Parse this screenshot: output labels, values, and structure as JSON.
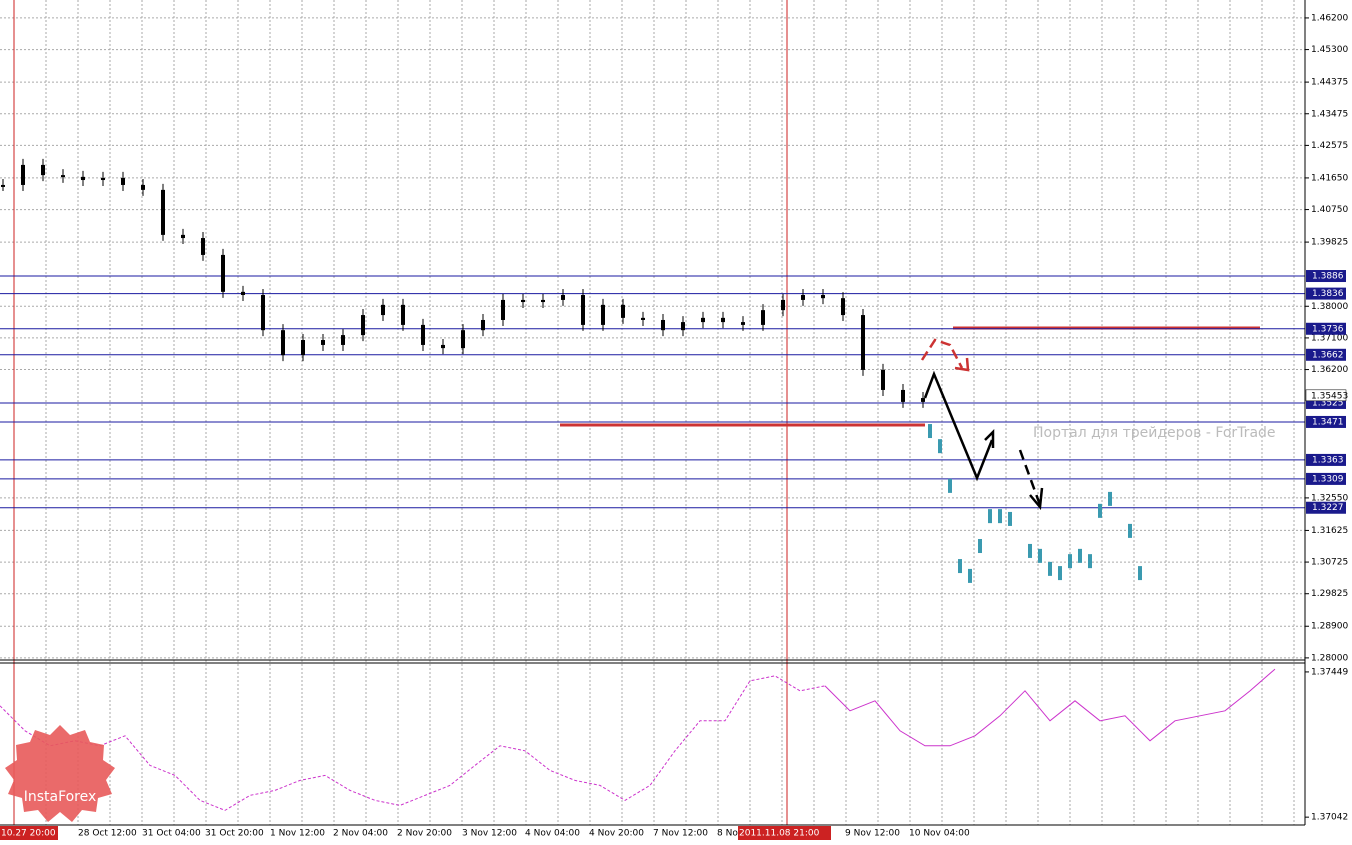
{
  "chart_data": {
    "type": "price",
    "ylim": [
      1.2794,
      1.4671
    ],
    "yticks": [
      {
        "value": 1.462,
        "label": "1.46200"
      },
      {
        "value": 1.453,
        "label": "1.45300"
      },
      {
        "value": 1.44375,
        "label": "1.44375"
      },
      {
        "value": 1.43475,
        "label": "1.43475"
      },
      {
        "value": 1.42575,
        "label": "1.42575"
      },
      {
        "value": 1.4165,
        "label": "1.41650"
      },
      {
        "value": 1.4075,
        "label": "1.40750"
      },
      {
        "value": 1.39825,
        "label": "1.39825"
      },
      {
        "value": 1.38,
        "label": "1.38000"
      },
      {
        "value": 1.371,
        "label": "1.37100"
      },
      {
        "value": 1.362,
        "label": "1.36200"
      },
      {
        "value": 1.3255,
        "label": "1.32550"
      },
      {
        "value": 1.31625,
        "label": "1.31625"
      },
      {
        "value": 1.30725,
        "label": "1.30725"
      },
      {
        "value": 1.29825,
        "label": "1.29825"
      },
      {
        "value": 1.289,
        "label": "1.28900"
      },
      {
        "value": 1.28,
        "label": "1.28000"
      }
    ],
    "levels": [
      1.3886,
      1.3836,
      1.3736,
      1.3662,
      1.3525,
      1.3471,
      1.3363,
      1.3309,
      1.3227
    ],
    "current_price": 1.35453,
    "x_labels": [
      "28 Oct 12:00",
      "31 Oct 04:00",
      "31 Oct 20:00",
      "1 Nov 12:00",
      "2 Nov 04:00",
      "2 Nov 20:00",
      "3 Nov 12:00",
      "4 Nov 04:00",
      "4 Nov 20:00",
      "7 Nov 12:00",
      "8 No",
      "9 Nov 12:00",
      "10 Nov 04:00"
    ],
    "highlight_labels": [
      "10.27 20:00",
      "2011.11.08 21:00"
    ],
    "watermark": "Портал для трейдеров - ForTrade",
    "logo": "InstaForex",
    "series": [
      {
        "color": "#000000",
        "values": [
          1.4145,
          1.4202,
          1.4173,
          1.4168,
          1.4159,
          1.4165,
          1.4145,
          1.4131,
          1.4003,
          1.3994,
          1.3946,
          1.3841,
          1.3832,
          1.3732,
          1.3661,
          1.3704,
          1.369,
          1.3718,
          1.3775,
          1.3804,
          1.3747,
          1.369,
          1.3681,
          1.3732,
          1.3761,
          1.3818,
          1.3812,
          1.3818,
          1.3832,
          1.3747,
          1.3804,
          1.3767,
          1.3761,
          1.3732,
          1.3755,
          1.3767,
          1.3755,
          1.3747,
          1.3789,
          1.3818,
          1.3832,
          1.3823,
          1.3775,
          1.3619,
          1.3562,
          1.3528,
          1.3539
        ]
      },
      {
        "color": "#3a9ab0",
        "values": [
          1.3448,
          1.3405,
          1.3292,
          1.3064,
          1.3036,
          1.3121,
          1.3206,
          1.3206,
          1.3198,
          null,
          1.3107,
          1.3093,
          1.3056,
          1.3044,
          1.3078,
          1.3093,
          1.3078,
          1.3221,
          1.3255,
          null,
          1.3164,
          1.3044
        ]
      }
    ],
    "indicator": {
      "ylim": [
        1.3702,
        1.37474
      ],
      "yticks": [
        1.37449,
        1.37042
      ],
      "color": "#cc33cc",
      "series": [
        {
          "values": [
            1.37354,
            1.37284,
            1.37242,
            1.37256,
            1.37242,
            1.3727,
            1.37187,
            1.37159,
            1.37089,
            1.37061,
            1.37103,
            1.37117,
            1.37145,
            1.37159,
            1.37117,
            1.37089,
            1.37075,
            1.37103,
            1.37131,
            1.37187,
            1.37242,
            1.37228,
            1.37173,
            1.37145,
            1.37131,
            1.37089,
            1.37131,
            1.37228,
            1.37312,
            1.37312,
            1.37424,
            1.37438,
            1.37396,
            1.3741,
            null,
            null,
            null,
            null,
            null,
            null,
            null,
            null,
            null,
            null,
            null,
            null,
            null,
            null,
            null,
            null,
            null,
            null
          ]
        },
        {
          "values": [
            null,
            null,
            null,
            null,
            null,
            null,
            null,
            null,
            null,
            null,
            null,
            null,
            null,
            null,
            null,
            null,
            null,
            null,
            null,
            null,
            null,
            null,
            null,
            null,
            null,
            null,
            null,
            null,
            null,
            null,
            null,
            null,
            null,
            1.3741,
            1.3734,
            1.37368,
            1.37284,
            1.37242,
            1.37242,
            1.3727,
            1.37326,
            1.37396,
            1.37312,
            1.37368,
            1.37312,
            1.37326,
            1.37256,
            1.37312,
            1.37326,
            1.3734,
            1.37396,
            1.37457
          ]
        }
      ]
    }
  }
}
